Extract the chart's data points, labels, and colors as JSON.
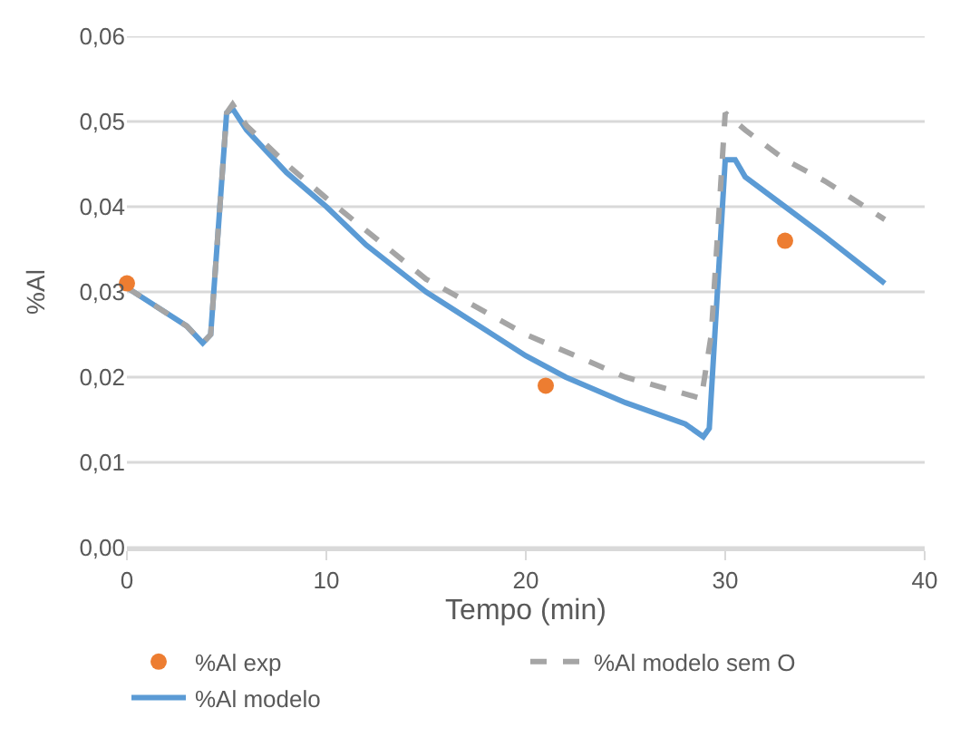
{
  "chart_data": {
    "type": "line",
    "xlabel": "Tempo (min)",
    "ylabel": "%Al",
    "xlim": [
      0,
      40
    ],
    "xticks": [
      0,
      10,
      20,
      30,
      40
    ],
    "ylim": [
      0,
      0.06
    ],
    "yticks": [
      {
        "value": 0,
        "label": "0,00"
      },
      {
        "value": 0.01,
        "label": "0,01"
      },
      {
        "value": 0.02,
        "label": "0,02"
      },
      {
        "value": 0.03,
        "label": "0,03"
      },
      {
        "value": 0.04,
        "label": "0,04"
      },
      {
        "value": 0.05,
        "label": "0,05"
      },
      {
        "value": 0.06,
        "label": "0,06"
      }
    ],
    "grid": "y",
    "legend": "bottom",
    "series": [
      {
        "name": "%Al exp",
        "type": "scatter",
        "marker": "circle",
        "color": "#ed7d31",
        "x": [
          0,
          21,
          33
        ],
        "values": [
          0.031,
          0.019,
          0.036
        ]
      },
      {
        "name": "%Al modelo sem O",
        "line_style": "dashed",
        "marker": "none",
        "color": "#a5a5a5",
        "x": [
          0,
          3,
          3.8,
          4.2,
          5,
          5.3,
          6,
          8,
          10,
          15,
          20,
          25,
          28.8,
          29.3,
          30,
          31,
          33,
          35,
          38
        ],
        "values": [
          0.0305,
          0.026,
          0.024,
          0.025,
          0.051,
          0.052,
          0.0495,
          0.045,
          0.041,
          0.0315,
          0.025,
          0.02,
          0.0175,
          0.025,
          0.051,
          0.049,
          0.0455,
          0.043,
          0.0385
        ]
      },
      {
        "name": "%Al modelo",
        "line_style": "solid",
        "marker": "none",
        "color": "#5b9bd5",
        "x": [
          0,
          3,
          3.8,
          4.2,
          5,
          5.3,
          6,
          8,
          10,
          12,
          15,
          18,
          20,
          22,
          25,
          28,
          28.9,
          29.2,
          30,
          30.5,
          31,
          33,
          35,
          38
        ],
        "values": [
          0.0305,
          0.026,
          0.024,
          0.025,
          0.051,
          0.0515,
          0.049,
          0.044,
          0.04,
          0.0355,
          0.03,
          0.0255,
          0.0225,
          0.02,
          0.017,
          0.0145,
          0.013,
          0.014,
          0.0455,
          0.0455,
          0.0435,
          0.04,
          0.0365,
          0.031
        ]
      }
    ]
  }
}
